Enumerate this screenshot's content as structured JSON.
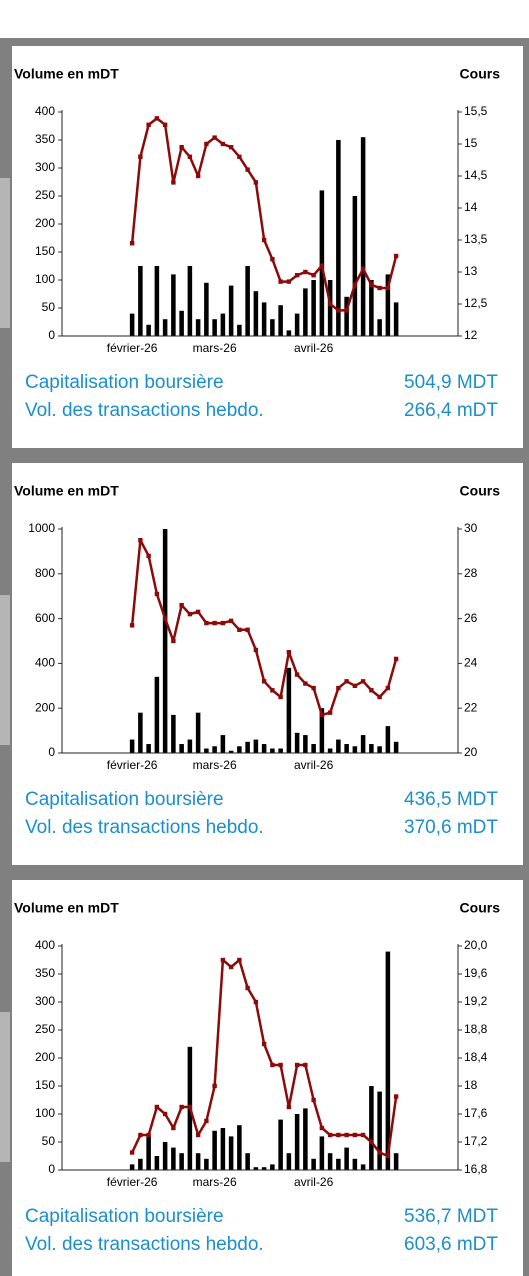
{
  "chart_data": [
    {
      "type": "combo",
      "ylabel": "Volume en mDT",
      "y2label": "Cours",
      "categories": [
        null,
        null,
        null,
        null,
        null,
        null,
        null,
        null,
        "février-26",
        null,
        null,
        null,
        null,
        null,
        null,
        null,
        null,
        null,
        "mars-26",
        null,
        null,
        null,
        null,
        null,
        null,
        null,
        null,
        null,
        null,
        null,
        "avril-26",
        null,
        null,
        null,
        null,
        null,
        null,
        null,
        null,
        null,
        null,
        null,
        null,
        null,
        null,
        null,
        null,
        null
      ],
      "ylim": [
        0,
        400
      ],
      "yticks": [
        0,
        50,
        100,
        150,
        200,
        250,
        300,
        350,
        400
      ],
      "y2lim": [
        12,
        15.5
      ],
      "y2ticks": [
        12,
        {
          "value": 12.5,
          "label": "12,5"
        },
        13,
        {
          "value": 13.5,
          "label": "13,5"
        },
        14,
        {
          "value": 14.5,
          "label": "14,5"
        },
        15,
        {
          "value": 15.5,
          "label": "15,5"
        }
      ],
      "series": [
        {
          "type": "bar",
          "color": "#000000",
          "values": [
            null,
            null,
            null,
            null,
            null,
            null,
            null,
            null,
            40,
            125,
            20,
            125,
            30,
            110,
            45,
            125,
            30,
            95,
            30,
            40,
            90,
            20,
            125,
            80,
            60,
            30,
            55,
            10,
            40,
            85,
            100,
            260,
            100,
            350,
            70,
            250,
            355,
            100,
            30,
            110,
            60,
            null,
            null,
            null,
            null,
            null,
            null,
            null
          ]
        },
        {
          "type": "line",
          "axis": "y2",
          "color": "#8b0a0a",
          "values": [
            null,
            null,
            null,
            null,
            null,
            null,
            null,
            null,
            13.45,
            14.8,
            15.3,
            15.4,
            15.3,
            14.4,
            14.95,
            14.8,
            14.5,
            15.0,
            15.1,
            15.0,
            14.95,
            14.8,
            14.6,
            14.4,
            13.5,
            13.2,
            12.85,
            12.85,
            12.95,
            13.0,
            12.95,
            13.1,
            12.5,
            12.4,
            12.4,
            12.8,
            13.05,
            12.8,
            12.75,
            12.75,
            13.25,
            null,
            null,
            null,
            null,
            null,
            null,
            null
          ]
        }
      ],
      "stats": [
        {
          "label": "Capitalisation boursière",
          "value": "504,9 MDT"
        },
        {
          "label": "Vol. des transactions hebdo.",
          "value": "266,4 mDT"
        }
      ]
    },
    {
      "type": "combo",
      "ylabel": "Volume en mDT",
      "y2label": "Cours",
      "categories": [
        null,
        null,
        null,
        null,
        null,
        null,
        null,
        null,
        "février-26",
        null,
        null,
        null,
        null,
        null,
        null,
        null,
        null,
        null,
        "mars-26",
        null,
        null,
        null,
        null,
        null,
        null,
        null,
        null,
        null,
        null,
        null,
        "avril-26",
        null,
        null,
        null,
        null,
        null,
        null,
        null,
        null,
        null,
        null,
        null,
        null,
        null,
        null,
        null,
        null,
        null
      ],
      "ylim": [
        0,
        1000
      ],
      "yticks": [
        0,
        200,
        400,
        600,
        800,
        1000
      ],
      "y2lim": [
        20,
        30
      ],
      "y2ticks": [
        20,
        22,
        24,
        26,
        28,
        30
      ],
      "series": [
        {
          "type": "bar",
          "color": "#000000",
          "values": [
            null,
            null,
            null,
            null,
            null,
            null,
            null,
            null,
            60,
            180,
            40,
            340,
            1000,
            170,
            40,
            60,
            180,
            20,
            30,
            80,
            10,
            30,
            50,
            60,
            40,
            20,
            20,
            380,
            90,
            80,
            40,
            200,
            20,
            60,
            40,
            30,
            80,
            40,
            30,
            120,
            50,
            null,
            null,
            null,
            null,
            null,
            null,
            null
          ]
        },
        {
          "type": "line",
          "axis": "y2",
          "color": "#8b0a0a",
          "values": [
            null,
            null,
            null,
            null,
            null,
            null,
            null,
            null,
            25.7,
            29.5,
            28.8,
            27.1,
            26,
            25,
            26.6,
            26.2,
            26.3,
            25.8,
            25.8,
            25.8,
            25.9,
            25.5,
            25.5,
            24.6,
            23.2,
            22.8,
            22.5,
            24.5,
            23.5,
            23.1,
            22.9,
            21.7,
            21.8,
            22.9,
            23.2,
            23,
            23.2,
            22.8,
            22.5,
            22.9,
            24.2,
            null,
            null,
            null,
            null,
            null,
            null,
            null
          ]
        }
      ],
      "stats": [
        {
          "label": "Capitalisation boursière",
          "value": "436,5 MDT"
        },
        {
          "label": "Vol. des transactions hebdo.",
          "value": "370,6 mDT"
        }
      ]
    },
    {
      "type": "combo",
      "ylabel": "Volume en mDT",
      "y2label": "Cours",
      "categories": [
        null,
        null,
        null,
        null,
        null,
        null,
        null,
        null,
        "février-26",
        null,
        null,
        null,
        null,
        null,
        null,
        null,
        null,
        null,
        "mars-26",
        null,
        null,
        null,
        null,
        null,
        null,
        null,
        null,
        null,
        null,
        null,
        "avril-26",
        null,
        null,
        null,
        null,
        null,
        null,
        null,
        null,
        null,
        null,
        null,
        null,
        null,
        null,
        null,
        null,
        null
      ],
      "ylim": [
        0,
        400
      ],
      "yticks": [
        0,
        50,
        100,
        150,
        200,
        250,
        300,
        350,
        400
      ],
      "y2lim": [
        16.8,
        20
      ],
      "y2ticks": [
        {
          "value": 16.8,
          "label": "16,8"
        },
        {
          "value": 17.2,
          "label": "17,2"
        },
        {
          "value": 17.6,
          "label": "17,6"
        },
        18,
        {
          "value": 18.4,
          "label": "18,4"
        },
        {
          "value": 18.8,
          "label": "18,8"
        },
        {
          "value": 19.2,
          "label": "19,2"
        },
        {
          "value": 19.6,
          "label": "19,6"
        },
        {
          "value": 20,
          "label": "20,0"
        }
      ],
      "series": [
        {
          "type": "bar",
          "color": "#000000",
          "values": [
            null,
            null,
            null,
            null,
            null,
            null,
            null,
            null,
            10,
            20,
            60,
            25,
            50,
            40,
            30,
            220,
            30,
            20,
            70,
            75,
            60,
            80,
            30,
            5,
            5,
            10,
            90,
            30,
            100,
            110,
            20,
            60,
            30,
            20,
            40,
            20,
            10,
            150,
            140,
            390,
            30,
            null,
            null,
            null,
            null,
            null,
            null,
            null
          ]
        },
        {
          "type": "line",
          "axis": "y2",
          "color": "#8b0a0a",
          "values": [
            null,
            null,
            null,
            null,
            null,
            null,
            null,
            null,
            17.05,
            17.3,
            17.3,
            17.7,
            17.6,
            17.4,
            17.7,
            17.7,
            17.3,
            17.5,
            18.0,
            19.8,
            19.7,
            19.8,
            19.4,
            19.2,
            18.6,
            18.3,
            18.3,
            17.7,
            18.3,
            18.3,
            17.8,
            17.4,
            17.3,
            17.3,
            17.3,
            17.3,
            17.3,
            17.2,
            17.05,
            17.0,
            17.85,
            null,
            null,
            null,
            null,
            null,
            null,
            null
          ]
        }
      ],
      "stats": [
        {
          "label": "Capitalisation boursière",
          "value": "536,7 MDT"
        },
        {
          "label": "Vol. des transactions hebdo.",
          "value": "603,6 mDT"
        }
      ]
    }
  ]
}
